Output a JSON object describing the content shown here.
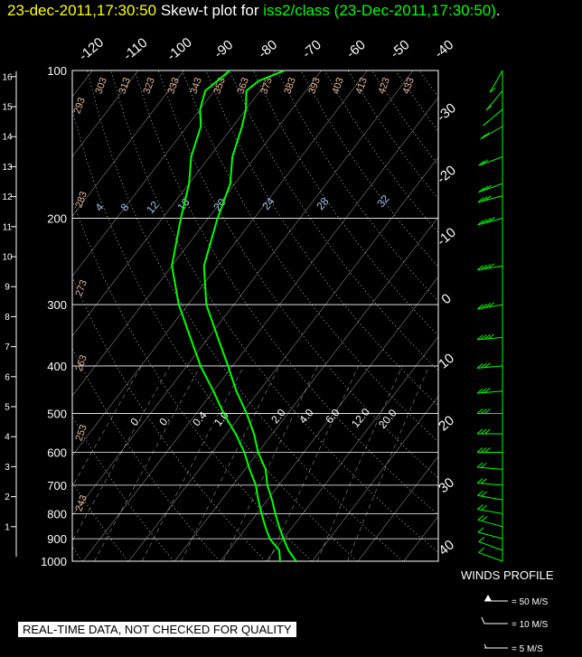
{
  "header": {
    "datetime": "23-dec-2011,17:30:50",
    "plot_label": "Skew-t plot for",
    "station": "iss2/class",
    "paren_time": "(23-Dec-2011,17:30:50)",
    "period": "."
  },
  "disclaimer": "REAL-TIME DATA, NOT CHECKED FOR QUALITY",
  "winds": {
    "title": "WINDS PROFILE",
    "legend": [
      {
        "label": "= 50 M/S",
        "speed": 50
      },
      {
        "label": "= 10 M/S",
        "speed": 10
      },
      {
        "label": "= 5 M/S",
        "speed": 5
      }
    ]
  },
  "colors": {
    "background": "#000000",
    "grid": "#ffffff",
    "trace": "#00ff00",
    "title_date": "#ffff00",
    "dry_adiabat_labels": "#e8b89a",
    "mixing_ratio_labels": "#9fc3ea"
  },
  "chart_data": {
    "type": "line",
    "chart_kind": "skew-t log-p",
    "y_axis": {
      "name": "pressure",
      "unit": "mb",
      "scale": "log",
      "range": [
        1000,
        100
      ],
      "ticks": [
        "100",
        "200",
        "300",
        "400",
        "500",
        "600",
        "700",
        "800",
        "900",
        "1000"
      ]
    },
    "height_axis": {
      "unit": "km",
      "ticks": [
        "1",
        "2",
        "3",
        "4",
        "5",
        "6",
        "7",
        "8",
        "9",
        "10",
        "11",
        "12",
        "13",
        "14",
        "15",
        "16"
      ]
    },
    "temperature_top_ticks": [
      "-120",
      "-110",
      "-100",
      "-90",
      "-80",
      "-70",
      "-60",
      "-50",
      "-40"
    ],
    "temperature_right_ticks": [
      "-30",
      "-20",
      "-10",
      "0",
      "10",
      "20",
      "30",
      "40"
    ],
    "dry_adiabat_labels": [
      "293",
      "303",
      "313",
      "323",
      "333",
      "343",
      "353",
      "363",
      "373",
      "383",
      "393",
      "403",
      "413",
      "423",
      "433",
      "283",
      "273",
      "263",
      "253",
      "243"
    ],
    "mixing_ratio_labels_upper": [
      "4",
      "8",
      "12",
      "16",
      "20",
      "24",
      "28",
      "32"
    ],
    "mixing_ratio_labels_lower": [
      "0.",
      "0.",
      "0.4",
      "1.0",
      "2.0",
      "4.0",
      "6.0",
      "12.0",
      "20.0"
    ],
    "series": [
      {
        "role": "temperature",
        "pressure": [
          1000,
          950,
          900,
          850,
          800,
          750,
          700,
          650,
          600,
          550,
          500,
          450,
          400,
          350,
          300,
          250,
          200,
          170,
          150,
          130,
          120,
          110,
          105,
          100
        ],
        "temperature": [
          16.5,
          13,
          10,
          7,
          4,
          1,
          -2.5,
          -5.5,
          -10,
          -14,
          -19,
          -25,
          -31,
          -38,
          -46,
          -53,
          -58,
          -61,
          -65,
          -68,
          -70,
          -73,
          -72,
          -68
        ]
      },
      {
        "role": "dewpoint",
        "pressure": [
          1000,
          950,
          900,
          850,
          800,
          750,
          700,
          650,
          600,
          550,
          500,
          450,
          400,
          350,
          300,
          250,
          200,
          170,
          150,
          130,
          120,
          110,
          105,
          100
        ],
        "temperature": [
          13,
          11,
          7,
          4,
          1,
          -2,
          -5,
          -9,
          -13,
          -18,
          -24,
          -30,
          -37,
          -44,
          -52,
          -60,
          -66,
          -70,
          -74,
          -77,
          -80,
          -82,
          -81,
          -80
        ]
      }
    ],
    "wind_barbs": {
      "unit": "M/S",
      "pressure": [
        1000,
        950,
        900,
        850,
        800,
        750,
        700,
        650,
        600,
        550,
        500,
        450,
        400,
        350,
        300,
        250,
        200,
        180,
        170,
        150,
        130,
        120,
        110,
        100
      ],
      "speed": [
        12,
        15,
        18,
        20,
        22,
        24,
        26,
        28,
        30,
        32,
        34,
        36,
        38,
        40,
        42,
        44,
        40,
        35,
        30,
        25,
        20,
        15,
        12,
        10
      ],
      "direction": [
        250,
        250,
        255,
        255,
        260,
        260,
        265,
        265,
        270,
        270,
        270,
        275,
        275,
        275,
        280,
        280,
        285,
        285,
        290,
        290,
        300,
        310,
        320,
        330
      ]
    }
  }
}
